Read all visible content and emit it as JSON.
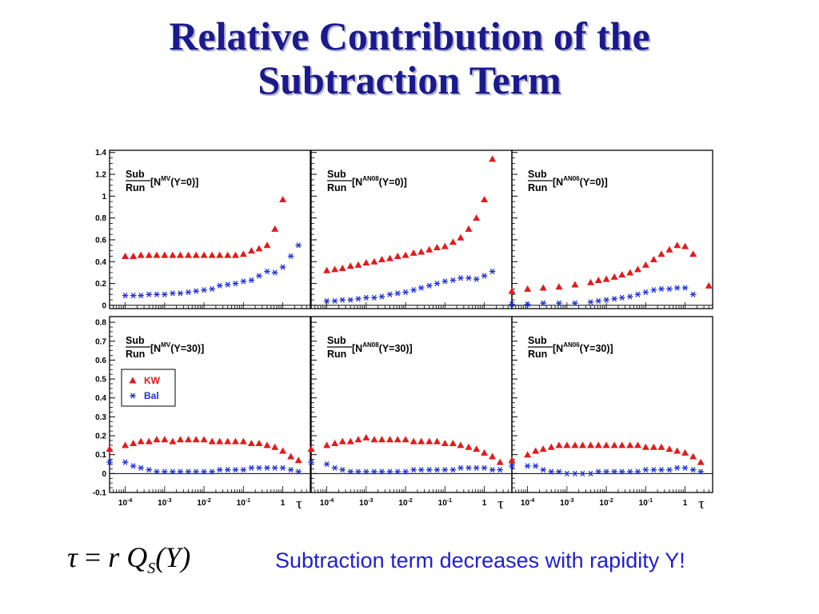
{
  "slide": {
    "title_line1": "Relative Contribution of the",
    "title_line2": "Subtraction Term",
    "formula": {
      "lhs": "τ",
      "eq": " = ",
      "r": "r",
      "Q": "Q",
      "sub": "S",
      "arg": "(Y)"
    },
    "caption": "Subtraction term decreases with rapidity Y!"
  },
  "colors": {
    "kw": "#e31a1c",
    "bal": "#1f2fd6",
    "axis": "#000000",
    "title": "#1a1a8c"
  },
  "axes": {
    "x_scale": "log",
    "x_ticks": [
      {
        "value": 0.0001,
        "base": "10",
        "exp": "-4"
      },
      {
        "value": 0.001,
        "base": "10",
        "exp": "-3"
      },
      {
        "value": 0.01,
        "base": "10",
        "exp": "-2"
      },
      {
        "value": 0.1,
        "base": "10",
        "exp": "-1"
      },
      {
        "value": 1,
        "base": "1",
        "exp": ""
      }
    ],
    "x_symbol": "τ",
    "xlim": [
      4e-05,
      5
    ],
    "row1": {
      "ylim": [
        -0.03,
        1.42
      ],
      "ticks": [
        0,
        0.2,
        0.4,
        0.6,
        0.8,
        1,
        1.2,
        1.4
      ],
      "tick_labels": [
        "0",
        "0.2",
        "0.4",
        "0.6",
        "0.8",
        "1",
        "1.2",
        "1.4"
      ]
    },
    "row2": {
      "ylim": [
        -0.1,
        0.83
      ],
      "ticks": [
        -0.1,
        0,
        0.1,
        0.2,
        0.3,
        0.4,
        0.5,
        0.6,
        0.7,
        0.8
      ],
      "tick_labels": [
        "-0.1",
        "0",
        "0.1",
        "0.2",
        "0.3",
        "0.4",
        "0.5",
        "0.6",
        "0.7",
        "0.8"
      ]
    }
  },
  "legend": {
    "kw": "KW",
    "bal": "Bal"
  },
  "chart_data": [
    {
      "type": "scatter",
      "row": 1,
      "col": 1,
      "label": {
        "num": "Sub",
        "den": "Run",
        "pre": "[N",
        "sup": "MV",
        "post": "(Y=0)]"
      },
      "series": [
        {
          "name": "KW",
          "marker": "triangle",
          "x": [
            0.0001,
            0.00016,
            0.00025,
            0.0004,
            0.00063,
            0.001,
            0.0016,
            0.0025,
            0.004,
            0.0063,
            0.01,
            0.016,
            0.025,
            0.04,
            0.063,
            0.1,
            0.16,
            0.25,
            0.4,
            0.63,
            1
          ],
          "y": [
            0.45,
            0.45,
            0.46,
            0.46,
            0.46,
            0.46,
            0.46,
            0.46,
            0.46,
            0.46,
            0.46,
            0.46,
            0.46,
            0.46,
            0.46,
            0.47,
            0.5,
            0.52,
            0.55,
            0.7,
            0.97
          ]
        },
        {
          "name": "Bal",
          "marker": "star",
          "x": [
            0.0001,
            0.00016,
            0.00025,
            0.0004,
            0.00063,
            0.001,
            0.0016,
            0.0025,
            0.004,
            0.0063,
            0.01,
            0.016,
            0.025,
            0.04,
            0.063,
            0.1,
            0.16,
            0.25,
            0.4,
            0.63,
            1,
            1.6,
            2.5
          ],
          "y": [
            0.09,
            0.09,
            0.09,
            0.1,
            0.1,
            0.1,
            0.11,
            0.11,
            0.12,
            0.13,
            0.14,
            0.15,
            0.18,
            0.19,
            0.2,
            0.22,
            0.23,
            0.27,
            0.31,
            0.3,
            0.35,
            0.45,
            0.55
          ]
        }
      ]
    },
    {
      "type": "scatter",
      "row": 1,
      "col": 2,
      "label": {
        "num": "Sub",
        "den": "Run",
        "pre": "[N",
        "sup": "AN08",
        "post": "(Y=0)]"
      },
      "series": [
        {
          "name": "KW",
          "marker": "triangle",
          "x": [
            0.0001,
            0.00016,
            0.00025,
            0.0004,
            0.00063,
            0.001,
            0.0016,
            0.0025,
            0.004,
            0.0063,
            0.01,
            0.016,
            0.025,
            0.04,
            0.063,
            0.1,
            0.16,
            0.25,
            0.4,
            0.63,
            1,
            1.6
          ],
          "y": [
            0.32,
            0.33,
            0.34,
            0.36,
            0.37,
            0.39,
            0.4,
            0.42,
            0.43,
            0.45,
            0.46,
            0.48,
            0.49,
            0.51,
            0.53,
            0.54,
            0.58,
            0.62,
            0.7,
            0.8,
            0.97,
            1.34
          ]
        },
        {
          "name": "Bal",
          "marker": "star",
          "x": [
            0.0001,
            0.00016,
            0.00025,
            0.0004,
            0.00063,
            0.001,
            0.0016,
            0.0025,
            0.004,
            0.0063,
            0.01,
            0.016,
            0.025,
            0.04,
            0.063,
            0.1,
            0.16,
            0.25,
            0.4,
            0.63,
            1,
            1.6
          ],
          "y": [
            0.04,
            0.04,
            0.05,
            0.05,
            0.06,
            0.07,
            0.07,
            0.08,
            0.1,
            0.11,
            0.12,
            0.14,
            0.16,
            0.18,
            0.2,
            0.22,
            0.23,
            0.25,
            0.25,
            0.24,
            0.27,
            0.31
          ]
        }
      ]
    },
    {
      "type": "scatter",
      "row": 1,
      "col": 3,
      "label": {
        "num": "Sub",
        "den": "Run",
        "pre": "[N",
        "sup": "AN06",
        "post": "(Y=0)]"
      },
      "series": [
        {
          "name": "KW",
          "marker": "triangle",
          "x": [
            4e-05,
            0.0001,
            0.00025,
            0.00063,
            0.0016,
            0.004,
            0.0063,
            0.01,
            0.016,
            0.025,
            0.04,
            0.063,
            0.1,
            0.16,
            0.25,
            0.4,
            0.63,
            1,
            1.6,
            4
          ],
          "y": [
            0.13,
            0.15,
            0.16,
            0.17,
            0.19,
            0.21,
            0.23,
            0.24,
            0.26,
            0.28,
            0.3,
            0.33,
            0.37,
            0.42,
            0.47,
            0.51,
            0.55,
            0.54,
            0.47,
            0.18
          ]
        },
        {
          "name": "Bal",
          "marker": "star",
          "x": [
            4e-05,
            0.0001,
            0.00025,
            0.00063,
            0.0016,
            0.004,
            0.0063,
            0.01,
            0.016,
            0.025,
            0.04,
            0.063,
            0.1,
            0.16,
            0.25,
            0.4,
            0.63,
            1,
            1.6
          ],
          "y": [
            0.01,
            0.01,
            0.02,
            0.02,
            0.02,
            0.03,
            0.04,
            0.05,
            0.06,
            0.07,
            0.08,
            0.1,
            0.12,
            0.14,
            0.15,
            0.15,
            0.16,
            0.16,
            0.1
          ]
        }
      ]
    },
    {
      "type": "scatter",
      "row": 2,
      "col": 1,
      "label": {
        "num": "Sub",
        "den": "Run",
        "pre": "[N",
        "sup": "MV",
        "post": "(Y=30)]"
      },
      "series": [
        {
          "name": "KW",
          "marker": "triangle",
          "x": [
            4e-05,
            0.0001,
            0.00016,
            0.00025,
            0.0004,
            0.00063,
            0.001,
            0.0016,
            0.0025,
            0.004,
            0.0063,
            0.01,
            0.016,
            0.025,
            0.04,
            0.063,
            0.1,
            0.16,
            0.25,
            0.4,
            0.63,
            1,
            1.6,
            2.5
          ],
          "y": [
            0.13,
            0.15,
            0.16,
            0.17,
            0.17,
            0.18,
            0.18,
            0.17,
            0.18,
            0.18,
            0.18,
            0.18,
            0.17,
            0.17,
            0.17,
            0.17,
            0.17,
            0.16,
            0.16,
            0.15,
            0.14,
            0.12,
            0.09,
            0.07
          ]
        },
        {
          "name": "Bal",
          "marker": "star",
          "x": [
            4e-05,
            0.0001,
            0.00016,
            0.00025,
            0.0004,
            0.00063,
            0.001,
            0.0016,
            0.0025,
            0.004,
            0.0063,
            0.01,
            0.016,
            0.025,
            0.04,
            0.063,
            0.1,
            0.16,
            0.25,
            0.4,
            0.63,
            1,
            1.6,
            2.5
          ],
          "y": [
            0.06,
            0.06,
            0.04,
            0.03,
            0.02,
            0.01,
            0.01,
            0.01,
            0.01,
            0.01,
            0.01,
            0.01,
            0.01,
            0.02,
            0.02,
            0.02,
            0.02,
            0.03,
            0.03,
            0.03,
            0.03,
            0.03,
            0.02,
            0.01
          ]
        }
      ]
    },
    {
      "type": "scatter",
      "row": 2,
      "col": 2,
      "label": {
        "num": "Sub",
        "den": "Run",
        "pre": "[N",
        "sup": "AN08",
        "post": "(Y=30)]"
      },
      "series": [
        {
          "name": "KW",
          "marker": "triangle",
          "x": [
            4e-05,
            0.0001,
            0.00016,
            0.00025,
            0.0004,
            0.00063,
            0.001,
            0.0016,
            0.0025,
            0.004,
            0.0063,
            0.01,
            0.016,
            0.025,
            0.04,
            0.063,
            0.1,
            0.16,
            0.25,
            0.4,
            0.63,
            1,
            1.6,
            2.5
          ],
          "y": [
            0.13,
            0.15,
            0.16,
            0.17,
            0.17,
            0.18,
            0.19,
            0.18,
            0.18,
            0.18,
            0.18,
            0.18,
            0.17,
            0.17,
            0.17,
            0.17,
            0.16,
            0.16,
            0.15,
            0.14,
            0.13,
            0.11,
            0.09,
            0.06
          ]
        },
        {
          "name": "Bal",
          "marker": "star",
          "x": [
            4e-05,
            0.0001,
            0.00016,
            0.00025,
            0.0004,
            0.00063,
            0.001,
            0.0016,
            0.0025,
            0.004,
            0.0063,
            0.01,
            0.016,
            0.025,
            0.04,
            0.063,
            0.1,
            0.16,
            0.25,
            0.4,
            0.63,
            1,
            1.6,
            2.5
          ],
          "y": [
            0.06,
            0.05,
            0.03,
            0.02,
            0.01,
            0.01,
            0.01,
            0.01,
            0.01,
            0.01,
            0.01,
            0.01,
            0.02,
            0.02,
            0.02,
            0.02,
            0.02,
            0.02,
            0.03,
            0.03,
            0.03,
            0.03,
            0.02,
            0.02
          ]
        }
      ]
    },
    {
      "type": "scatter",
      "row": 2,
      "col": 3,
      "label": {
        "num": "Sub",
        "den": "Run",
        "pre": "[N",
        "sup": "AN06",
        "post": "(Y=30)]"
      },
      "series": [
        {
          "name": "KW",
          "marker": "triangle",
          "x": [
            4e-05,
            0.0001,
            0.00016,
            0.00025,
            0.0004,
            0.00063,
            0.001,
            0.0016,
            0.0025,
            0.004,
            0.0063,
            0.01,
            0.016,
            0.025,
            0.04,
            0.063,
            0.1,
            0.16,
            0.25,
            0.4,
            0.63,
            1,
            1.6,
            2.5
          ],
          "y": [
            0.07,
            0.1,
            0.12,
            0.13,
            0.14,
            0.15,
            0.15,
            0.15,
            0.15,
            0.15,
            0.15,
            0.15,
            0.15,
            0.15,
            0.15,
            0.15,
            0.14,
            0.14,
            0.14,
            0.13,
            0.12,
            0.11,
            0.09,
            0.06
          ]
        },
        {
          "name": "Bal",
          "marker": "star",
          "x": [
            4e-05,
            0.0001,
            0.00016,
            0.00025,
            0.0004,
            0.00063,
            0.001,
            0.0016,
            0.0025,
            0.004,
            0.0063,
            0.01,
            0.016,
            0.025,
            0.04,
            0.063,
            0.1,
            0.16,
            0.25,
            0.4,
            0.63,
            1,
            1.6,
            2.5
          ],
          "y": [
            0.04,
            0.04,
            0.04,
            0.02,
            0.01,
            0.01,
            0.0,
            0.0,
            0.0,
            0.0,
            0.01,
            0.01,
            0.01,
            0.01,
            0.01,
            0.01,
            0.02,
            0.02,
            0.02,
            0.02,
            0.03,
            0.03,
            0.02,
            0.01
          ]
        }
      ]
    }
  ]
}
